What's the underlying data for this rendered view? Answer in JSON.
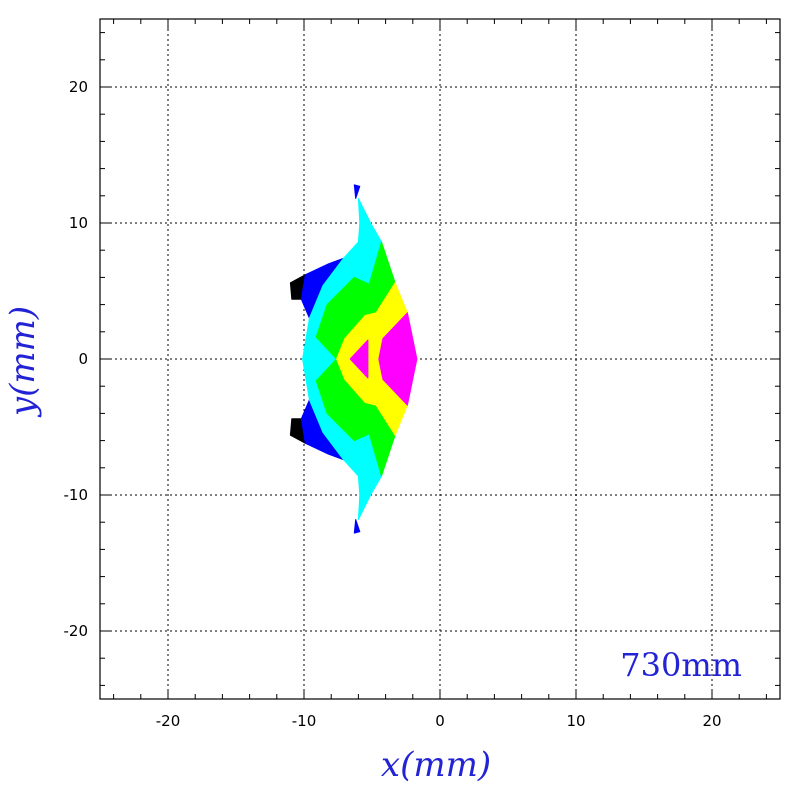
{
  "chart_data": {
    "type": "heatmap",
    "xlabel": "x(mm)",
    "ylabel": "y(mm)",
    "xlim": [
      -25,
      25
    ],
    "ylim": [
      -25,
      25
    ],
    "xticks": [
      -20,
      -10,
      0,
      10,
      20
    ],
    "yticks": [
      -20,
      -10,
      0,
      10,
      20
    ],
    "grid": true,
    "annotation": "730mm",
    "colors": {
      "label": "#2323d6",
      "levels": [
        "#000000",
        "#0000ff",
        "#00ffff",
        "#00ff00",
        "#ffff00",
        "#ff00ff"
      ]
    },
    "bands": [
      {
        "color": "#000000",
        "polygons": [
          [
            [
              -11.0,
              5.6
            ],
            [
              -9.9,
              6.2
            ],
            [
              -10.2,
              4.4
            ],
            [
              -10.9,
              4.4
            ]
          ],
          [
            [
              -11.0,
              -5.6
            ],
            [
              -9.9,
              -6.2
            ],
            [
              -10.2,
              -4.4
            ],
            [
              -10.9,
              -4.4
            ]
          ]
        ]
      },
      {
        "color": "#0000ff",
        "polygons": [
          [
            [
              -9.9,
              6.2
            ],
            [
              -8.2,
              7.0
            ],
            [
              -7.1,
              7.4
            ],
            [
              -8.6,
              5.4
            ],
            [
              -9.6,
              3.0
            ],
            [
              -10.2,
              4.4
            ]
          ],
          [
            [
              -9.9,
              -6.2
            ],
            [
              -8.2,
              -7.0
            ],
            [
              -7.1,
              -7.4
            ],
            [
              -8.6,
              -5.4
            ],
            [
              -9.6,
              -3.0
            ],
            [
              -10.2,
              -4.4
            ]
          ],
          [
            [
              -6.3,
              12.8
            ],
            [
              -5.9,
              12.7
            ],
            [
              -6.2,
              11.8
            ]
          ],
          [
            [
              -6.3,
              -12.8
            ],
            [
              -5.9,
              -12.7
            ],
            [
              -6.2,
              -11.8
            ]
          ]
        ]
      },
      {
        "color": "#00ffff",
        "polygons": [
          [
            [
              -9.6,
              3.0
            ],
            [
              -8.6,
              5.4
            ],
            [
              -7.1,
              7.4
            ],
            [
              -6.0,
              8.6
            ],
            [
              -5.9,
              10.0
            ],
            [
              -6.0,
              11.8
            ],
            [
              -5.1,
              10.0
            ],
            [
              -4.3,
              8.6
            ],
            [
              -5.2,
              5.5
            ],
            [
              -6.3,
              6.0
            ],
            [
              -8.3,
              4.0
            ],
            [
              -9.1,
              1.6
            ],
            [
              -7.6,
              0.0
            ],
            [
              -9.1,
              -1.6
            ],
            [
              -8.3,
              -4.0
            ],
            [
              -6.3,
              -6.0
            ],
            [
              -5.2,
              -5.5
            ],
            [
              -4.3,
              -8.6
            ],
            [
              -5.1,
              -10.0
            ],
            [
              -6.0,
              -11.8
            ],
            [
              -5.9,
              -10.0
            ],
            [
              -6.0,
              -8.6
            ],
            [
              -7.1,
              -7.4
            ],
            [
              -8.6,
              -5.4
            ],
            [
              -9.6,
              -3.0
            ],
            [
              -10.1,
              0.0
            ]
          ]
        ]
      },
      {
        "color": "#00ff00",
        "polygons": [
          [
            [
              -9.1,
              1.6
            ],
            [
              -8.3,
              4.0
            ],
            [
              -6.3,
              6.0
            ],
            [
              -5.2,
              5.5
            ],
            [
              -4.3,
              8.6
            ],
            [
              -3.3,
              5.6
            ],
            [
              -4.7,
              3.4
            ],
            [
              -5.5,
              3.2
            ],
            [
              -7.0,
              1.5
            ],
            [
              -7.6,
              0.0
            ],
            [
              -7.0,
              -1.5
            ],
            [
              -5.5,
              -3.2
            ],
            [
              -4.7,
              -3.4
            ],
            [
              -3.3,
              -5.6
            ],
            [
              -4.3,
              -8.6
            ],
            [
              -5.2,
              -5.5
            ],
            [
              -6.3,
              -6.0
            ],
            [
              -8.3,
              -4.0
            ],
            [
              -9.1,
              -1.6
            ],
            [
              -7.6,
              0.0
            ]
          ]
        ]
      },
      {
        "color": "#ffff00",
        "polygons": [
          [
            [
              -7.6,
              0.0
            ],
            [
              -7.0,
              1.5
            ],
            [
              -5.5,
              3.2
            ],
            [
              -4.7,
              3.4
            ],
            [
              -3.3,
              5.6
            ],
            [
              -2.4,
              3.4
            ],
            [
              -4.2,
              1.5
            ],
            [
              -4.5,
              0.0
            ],
            [
              -4.2,
              -1.5
            ],
            [
              -2.4,
              -3.4
            ],
            [
              -3.3,
              -5.6
            ],
            [
              -4.7,
              -3.4
            ],
            [
              -5.5,
              -3.2
            ],
            [
              -7.0,
              -1.5
            ]
          ]
        ]
      },
      {
        "color": "#ff00ff",
        "polygons": [
          [
            [
              -6.6,
              0.0
            ],
            [
              -5.3,
              1.4
            ],
            [
              -5.3,
              -1.4
            ]
          ],
          [
            [
              -4.5,
              0.0
            ],
            [
              -4.2,
              1.5
            ],
            [
              -2.4,
              3.4
            ],
            [
              -1.7,
              0.0
            ],
            [
              -2.4,
              -3.4
            ],
            [
              -4.2,
              -1.5
            ]
          ]
        ]
      }
    ]
  }
}
